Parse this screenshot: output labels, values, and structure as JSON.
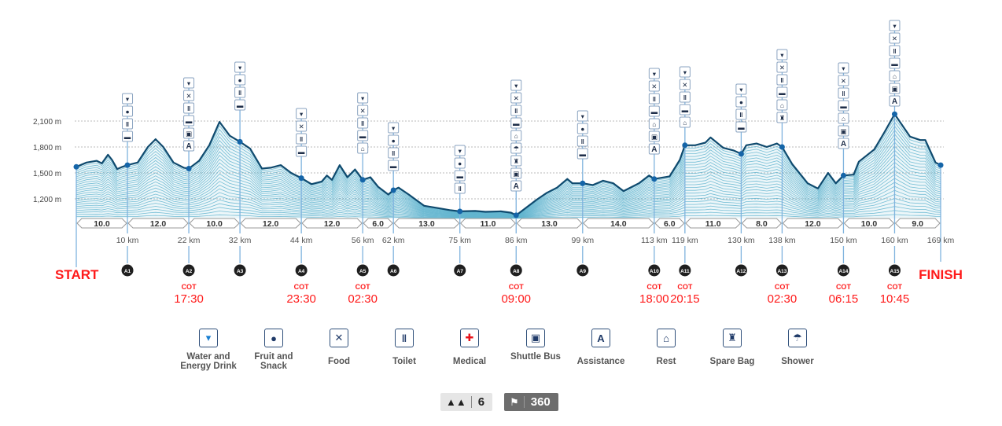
{
  "colors": {
    "profile_line": "#0f4a6e",
    "hatch": "#5fb4cf",
    "marker": "#1565a8",
    "cot": "#ff1a1a",
    "badge": "#1f1f1f",
    "grid": "#b8b8b8",
    "icon_border": "#2f4f7a",
    "medical": "#e8141b"
  },
  "chart_data": {
    "type": "area",
    "ylabel_unit": "m",
    "x_unit": "km",
    "xlim": [
      0,
      169
    ],
    "ylim": [
      970,
      2200
    ],
    "grid": "horizontal dotted",
    "y_ticks": [
      {
        "value": 1200,
        "label": "1,200 m"
      },
      {
        "value": 1500,
        "label": "1,500 m"
      },
      {
        "value": 1800,
        "label": "1,800 m"
      },
      {
        "value": 2100,
        "label": "2,100 m"
      }
    ],
    "profile": [
      [
        0,
        1570
      ],
      [
        2,
        1620
      ],
      [
        4,
        1640
      ],
      [
        5,
        1610
      ],
      [
        6.2,
        1710
      ],
      [
        7,
        1650
      ],
      [
        8,
        1545
      ],
      [
        9,
        1570
      ],
      [
        10,
        1590
      ],
      [
        12,
        1620
      ],
      [
        14,
        1800
      ],
      [
        15.5,
        1890
      ],
      [
        17,
        1800
      ],
      [
        19,
        1620
      ],
      [
        21,
        1560
      ],
      [
        22,
        1550
      ],
      [
        24,
        1640
      ],
      [
        26,
        1820
      ],
      [
        28,
        2090
      ],
      [
        30,
        1930
      ],
      [
        32,
        1860
      ],
      [
        34,
        1780
      ],
      [
        36.3,
        1550
      ],
      [
        38,
        1560
      ],
      [
        40,
        1590
      ],
      [
        42,
        1500
      ],
      [
        44,
        1440
      ],
      [
        46,
        1370
      ],
      [
        48,
        1400
      ],
      [
        49,
        1470
      ],
      [
        50,
        1420
      ],
      [
        51.5,
        1590
      ],
      [
        53,
        1450
      ],
      [
        54.5,
        1540
      ],
      [
        56,
        1420
      ],
      [
        57.5,
        1450
      ],
      [
        59,
        1340
      ],
      [
        61,
        1250
      ],
      [
        62,
        1300
      ],
      [
        63,
        1330
      ],
      [
        65,
        1250
      ],
      [
        68,
        1120
      ],
      [
        71,
        1090
      ],
      [
        73,
        1070
      ],
      [
        75,
        1055
      ],
      [
        78,
        1060
      ],
      [
        80,
        1050
      ],
      [
        83,
        1055
      ],
      [
        85,
        1040
      ],
      [
        86,
        1010
      ],
      [
        88,
        1100
      ],
      [
        90,
        1190
      ],
      [
        92,
        1270
      ],
      [
        94,
        1330
      ],
      [
        96,
        1430
      ],
      [
        97,
        1380
      ],
      [
        99,
        1380
      ],
      [
        101,
        1360
      ],
      [
        103,
        1410
      ],
      [
        105,
        1380
      ],
      [
        107,
        1290
      ],
      [
        110,
        1380
      ],
      [
        112,
        1470
      ],
      [
        113,
        1430
      ],
      [
        116,
        1460
      ],
      [
        118,
        1650
      ],
      [
        119,
        1820
      ],
      [
        121,
        1820
      ],
      [
        123,
        1850
      ],
      [
        124,
        1910
      ],
      [
        126.5,
        1790
      ],
      [
        128.5,
        1760
      ],
      [
        130,
        1720
      ],
      [
        131,
        1820
      ],
      [
        133,
        1840
      ],
      [
        135,
        1800
      ],
      [
        137,
        1840
      ],
      [
        138,
        1800
      ],
      [
        140,
        1600
      ],
      [
        143,
        1380
      ],
      [
        145,
        1320
      ],
      [
        147,
        1500
      ],
      [
        148.5,
        1380
      ],
      [
        150,
        1470
      ],
      [
        152,
        1480
      ],
      [
        153,
        1630
      ],
      [
        156,
        1770
      ],
      [
        158,
        1970
      ],
      [
        160,
        2180
      ],
      [
        163,
        1920
      ],
      [
        165,
        1880
      ],
      [
        166,
        1880
      ],
      [
        168,
        1620
      ],
      [
        169,
        1590
      ]
    ],
    "start_label": "START",
    "finish_label": "FINISH",
    "finish_km_label": "169 km",
    "finish_km": 169,
    "finish_elev": 1590,
    "start_elev": 1570,
    "segments": [
      "10.0",
      "12.0",
      "10.0",
      "12.0",
      "12.0",
      "6.0",
      "13.0",
      "11.0",
      "13.0",
      "14.0",
      "6.0",
      "11.0",
      "8.0",
      "12.0",
      "10.0",
      "9.0"
    ],
    "stations": [
      {
        "id": "A1",
        "km": 10,
        "km_label": "10 km",
        "elev": 1590,
        "cot_label": "",
        "cot": "",
        "services": [
          "water",
          "fruit",
          "toilet",
          "medical"
        ]
      },
      {
        "id": "A2",
        "km": 22,
        "km_label": "22 km",
        "elev": 1550,
        "cot_label": "COT",
        "cot": "17:30",
        "services": [
          "water",
          "food",
          "toilet",
          "medical",
          "shuttle",
          "assistance"
        ]
      },
      {
        "id": "A3",
        "km": 32,
        "km_label": "32 km",
        "elev": 1860,
        "cot_label": "",
        "cot": "",
        "services": [
          "water",
          "fruit",
          "toilet",
          "medical"
        ]
      },
      {
        "id": "A4",
        "km": 44,
        "km_label": "44 km",
        "elev": 1440,
        "cot_label": "COT",
        "cot": "23:30",
        "services": [
          "water",
          "food",
          "toilet",
          "medical"
        ]
      },
      {
        "id": "A5",
        "km": 56,
        "km_label": "56 km",
        "elev": 1420,
        "cot_label": "COT",
        "cot": "02:30",
        "services": [
          "water",
          "food",
          "toilet",
          "medical",
          "rest"
        ]
      },
      {
        "id": "A6",
        "km": 62,
        "km_label": "62 km",
        "elev": 1300,
        "cot_label": "",
        "cot": "",
        "services": [
          "water",
          "fruit",
          "toilet",
          "medical"
        ]
      },
      {
        "id": "A7",
        "km": 75,
        "km_label": "75 km",
        "elev": 1055,
        "cot_label": "",
        "cot": "",
        "services": [
          "water",
          "fruit",
          "medical",
          "toilet"
        ]
      },
      {
        "id": "A8",
        "km": 86,
        "km_label": "86 km",
        "elev": 1010,
        "cot_label": "COT",
        "cot": "09:00",
        "services": [
          "water",
          "food",
          "toilet",
          "medical",
          "rest",
          "shower",
          "spare_bag",
          "shuttle",
          "assistance"
        ]
      },
      {
        "id": "A9",
        "km": 99,
        "km_label": "99 km",
        "elev": 1380,
        "cot_label": "",
        "cot": "",
        "services": [
          "water",
          "fruit",
          "toilet",
          "medical"
        ]
      },
      {
        "id": "A10",
        "km": 113,
        "km_label": "113 km",
        "elev": 1430,
        "cot_label": "COT",
        "cot": "18:00",
        "services": [
          "water",
          "food",
          "toilet",
          "medical",
          "rest",
          "shuttle",
          "assistance"
        ]
      },
      {
        "id": "A11",
        "km": 119,
        "km_label": "119 km",
        "elev": 1820,
        "cot_label": "COT",
        "cot": "20:15",
        "services": [
          "water",
          "food",
          "toilet",
          "medical",
          "rest"
        ]
      },
      {
        "id": "A12",
        "km": 130,
        "km_label": "130 km",
        "elev": 1720,
        "cot_label": "",
        "cot": "",
        "services": [
          "water",
          "fruit",
          "toilet",
          "medical"
        ]
      },
      {
        "id": "A13",
        "km": 138,
        "km_label": "138 km",
        "elev": 1800,
        "cot_label": "COT",
        "cot": "02:30",
        "services": [
          "water",
          "food",
          "toilet",
          "medical",
          "rest",
          "spare_bag"
        ]
      },
      {
        "id": "A14",
        "km": 150,
        "km_label": "150 km",
        "elev": 1470,
        "cot_label": "COT",
        "cot": "06:15",
        "services": [
          "water",
          "food",
          "toilet",
          "medical",
          "rest",
          "shuttle",
          "assistance"
        ]
      },
      {
        "id": "A15",
        "km": 160,
        "km_label": "160 km",
        "elev": 2180,
        "cot_label": "COT",
        "cot": "10:45",
        "services": [
          "water",
          "food",
          "toilet",
          "medical",
          "rest",
          "shuttle",
          "assistance"
        ]
      }
    ]
  },
  "legend": [
    {
      "key": "water",
      "label": "Water and Energy Drink",
      "icon": "cup-icon"
    },
    {
      "key": "fruit",
      "label": "Fruit and Snack",
      "icon": "fruit-icon"
    },
    {
      "key": "food",
      "label": "Food",
      "icon": "fork-knife-icon"
    },
    {
      "key": "toilet",
      "label": "Toilet",
      "icon": "toilet-icon"
    },
    {
      "key": "medical",
      "label": "Medical",
      "icon": "ambulance-icon"
    },
    {
      "key": "shuttle",
      "label": "Shuttle Bus",
      "icon": "bus-icon"
    },
    {
      "key": "assistance",
      "label": "Assistance",
      "icon": "assistance-icon"
    },
    {
      "key": "rest",
      "label": "Rest",
      "icon": "bed-icon"
    },
    {
      "key": "spare_bag",
      "label": "Spare Bag",
      "icon": "bag-icon"
    },
    {
      "key": "shower",
      "label": "Shower",
      "icon": "shower-icon"
    }
  ],
  "stats": {
    "elevation_icon": "mountain-icon",
    "elevation_value": "6",
    "checkpoint_icon": "checkered-flag-icon",
    "checkpoint_value": "360"
  }
}
